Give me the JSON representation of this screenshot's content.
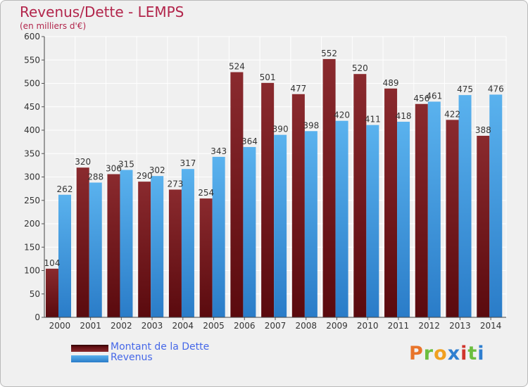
{
  "chart_data": {
    "type": "bar",
    "title": "Revenus/Dette - LEMPS",
    "subtitle": "(en milliers d'€)",
    "categories": [
      "2000",
      "2001",
      "2002",
      "2003",
      "2004",
      "2005",
      "2006",
      "2007",
      "2008",
      "2009",
      "2010",
      "2011",
      "2012",
      "2013",
      "2014"
    ],
    "series": [
      {
        "name": "Montant de la Dette",
        "color": "#7c1c22",
        "values": [
          104,
          320,
          306,
          290,
          273,
          254,
          524,
          501,
          477,
          552,
          520,
          489,
          456,
          422,
          388
        ]
      },
      {
        "name": "Revenus",
        "color": "#4aa5e6",
        "values": [
          262,
          288,
          315,
          302,
          317,
          343,
          364,
          390,
          398,
          420,
          411,
          418,
          461,
          475,
          476
        ]
      }
    ],
    "ylim": [
      0,
      600
    ],
    "yticks": [
      0,
      50,
      100,
      150,
      200,
      250,
      300,
      350,
      400,
      450,
      500,
      550,
      600
    ],
    "grid": true,
    "legend_position": "bottom-left"
  },
  "branding": {
    "logo_text": "Proxiti",
    "logo_colors": [
      "#e8742a",
      "#6cbe3f",
      "#f0a020",
      "#2f7fd0",
      "#d0342c",
      "#6cbe3f",
      "#2f7fd0"
    ]
  }
}
